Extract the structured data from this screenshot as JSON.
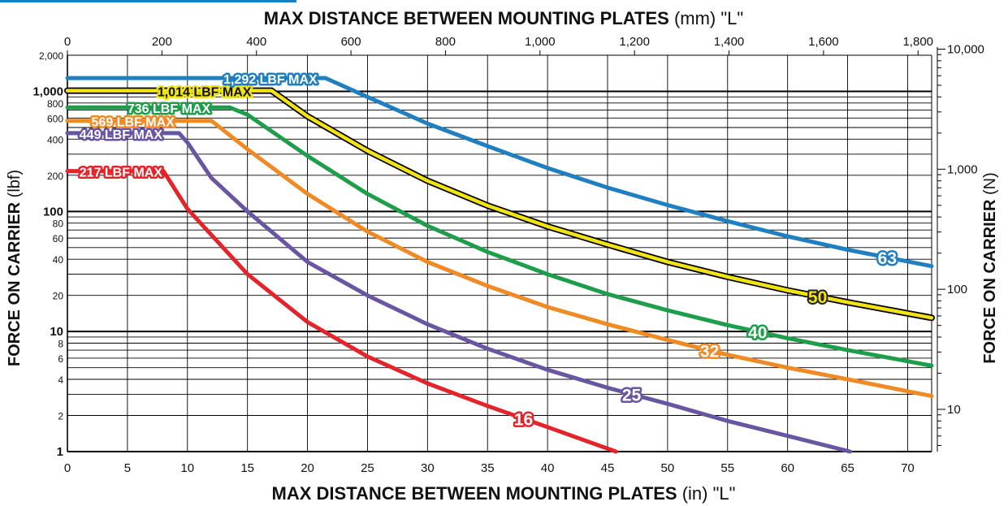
{
  "chart_data": {
    "type": "line",
    "title_top": {
      "bold": "MAX DISTANCE BETWEEN MOUNTING PLATES",
      "rest": " (mm) \"L\""
    },
    "title_bottom": {
      "bold": "MAX DISTANCE BETWEEN MOUNTING PLATES",
      "rest": " (in) \"L\""
    },
    "ylabel_left": {
      "bold": "FORCE ON CARRIER",
      "rest": " (lbf)"
    },
    "ylabel_right": {
      "bold": "FORCE ON CARRIER",
      "rest": " (N)"
    },
    "x_in_range": [
      0,
      72
    ],
    "x_in_ticks": [
      0,
      5,
      10,
      15,
      20,
      25,
      30,
      35,
      40,
      45,
      50,
      55,
      60,
      65,
      70
    ],
    "x_mm_ticks": [
      {
        "value": 0,
        "label": "0"
      },
      {
        "value": 200,
        "label": "200"
      },
      {
        "value": 400,
        "label": "400"
      },
      {
        "value": 600,
        "label": "600"
      },
      {
        "value": 800,
        "label": "800"
      },
      {
        "value": 1000,
        "label": "1,000"
      },
      {
        "value": 1200,
        "label": "1,200"
      },
      {
        "value": 1400,
        "label": "1,400"
      },
      {
        "value": 1600,
        "label": "1,600"
      },
      {
        "value": 1800,
        "label": "1,800"
      }
    ],
    "y_log_scale": true,
    "y_lbf_range": [
      1,
      2000
    ],
    "y_lbf_ticks": [
      {
        "value": 1,
        "label": "1",
        "bold": true
      },
      {
        "value": 2,
        "label": "2"
      },
      {
        "value": 4,
        "label": "4"
      },
      {
        "value": 6,
        "label": "6"
      },
      {
        "value": 8,
        "label": "8"
      },
      {
        "value": 10,
        "label": "10",
        "bold": true
      },
      {
        "value": 20,
        "label": "20"
      },
      {
        "value": 40,
        "label": "40"
      },
      {
        "value": 60,
        "label": "60"
      },
      {
        "value": 80,
        "label": "80"
      },
      {
        "value": 100,
        "label": "100",
        "bold": true
      },
      {
        "value": 200,
        "label": "200"
      },
      {
        "value": 400,
        "label": "400"
      },
      {
        "value": 600,
        "label": "600"
      },
      {
        "value": 800,
        "label": "800"
      },
      {
        "value": 1000,
        "label": "1,000",
        "bold": true
      },
      {
        "value": 2000,
        "label": "2,000"
      }
    ],
    "y_n_ticks": [
      {
        "value": 10,
        "label": "10"
      },
      {
        "value": 100,
        "label": "100"
      },
      {
        "value": 1000,
        "label": "1,000"
      },
      {
        "value": 10000,
        "label": "10,000"
      }
    ],
    "grid": true,
    "series": [
      {
        "name": "16",
        "color": "#e3242b",
        "max_label": "217 LBF MAX",
        "points": [
          [
            0,
            217
          ],
          [
            8,
            217
          ],
          [
            10,
            105
          ],
          [
            15,
            30
          ],
          [
            20,
            12
          ],
          [
            25,
            6.2
          ],
          [
            30,
            3.7
          ],
          [
            35,
            2.4
          ],
          [
            40,
            1.6
          ],
          [
            45.7,
            1.0
          ]
        ]
      },
      {
        "name": "25",
        "color": "#6a55a3",
        "max_label": "449 LBF MAX",
        "points": [
          [
            0,
            449
          ],
          [
            9.3,
            449
          ],
          [
            10,
            375
          ],
          [
            12,
            190
          ],
          [
            15,
            100
          ],
          [
            20,
            38
          ],
          [
            25,
            20
          ],
          [
            30,
            11.5
          ],
          [
            35,
            7.2
          ],
          [
            40,
            4.8
          ],
          [
            45,
            3.4
          ],
          [
            50,
            2.5
          ],
          [
            55,
            1.8
          ],
          [
            60,
            1.35
          ],
          [
            65.2,
            1.0
          ]
        ]
      },
      {
        "name": "32",
        "color": "#f08a24",
        "max_label": "569 LBF MAX",
        "points": [
          [
            0,
            569
          ],
          [
            12,
            569
          ],
          [
            15,
            330
          ],
          [
            20,
            140
          ],
          [
            25,
            68
          ],
          [
            30,
            38
          ],
          [
            35,
            24
          ],
          [
            40,
            16
          ],
          [
            45,
            11.5
          ],
          [
            50,
            8.5
          ],
          [
            55,
            6.4
          ],
          [
            60,
            5.0
          ],
          [
            65,
            4.0
          ],
          [
            72,
            2.9
          ]
        ]
      },
      {
        "name": "40",
        "color": "#1e9e4a",
        "max_label": "736 LBF MAX",
        "points": [
          [
            0,
            736
          ],
          [
            13.5,
            736
          ],
          [
            15,
            640
          ],
          [
            20,
            290
          ],
          [
            25,
            140
          ],
          [
            30,
            76
          ],
          [
            35,
            46
          ],
          [
            40,
            30
          ],
          [
            45,
            20.5
          ],
          [
            50,
            15
          ],
          [
            55,
            11.3
          ],
          [
            60,
            8.8
          ],
          [
            65,
            7.0
          ],
          [
            72,
            5.2
          ]
        ]
      },
      {
        "name": "50",
        "color": "#f2e313",
        "max_label": "1,014 LBF MAX",
        "points": [
          [
            0,
            1014
          ],
          [
            17,
            1014
          ],
          [
            20,
            620
          ],
          [
            25,
            320
          ],
          [
            30,
            180
          ],
          [
            35,
            112
          ],
          [
            40,
            75
          ],
          [
            45,
            53
          ],
          [
            50,
            38
          ],
          [
            55,
            28.5
          ],
          [
            60,
            22
          ],
          [
            65,
            17.5
          ],
          [
            72,
            13
          ]
        ]
      },
      {
        "name": "63",
        "color": "#1f7fc0",
        "max_label": "1,292 LBF MAX",
        "points": [
          [
            0,
            1292
          ],
          [
            21.5,
            1292
          ],
          [
            25,
            900
          ],
          [
            30,
            540
          ],
          [
            35,
            350
          ],
          [
            40,
            230
          ],
          [
            45,
            158
          ],
          [
            50,
            113
          ],
          [
            55,
            83
          ],
          [
            60,
            62
          ],
          [
            65,
            48
          ],
          [
            72,
            35
          ]
        ]
      }
    ]
  }
}
